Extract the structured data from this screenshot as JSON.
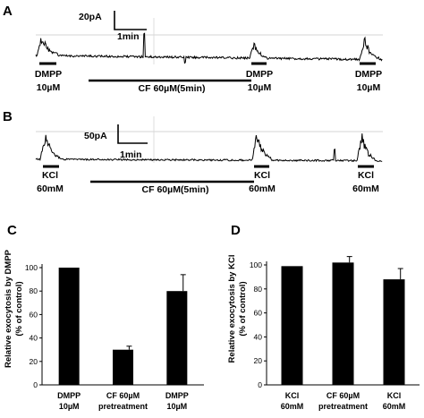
{
  "panels": {
    "a": {
      "letter": "A",
      "scale_current": "20pA",
      "scale_time": "1min",
      "markers": [
        {
          "line1": "DMPP",
          "line2": "10µM"
        },
        {
          "line1": "DMPP",
          "line2": "10µM"
        },
        {
          "line1": "DMPP",
          "line2": "10µM"
        }
      ],
      "treatment": "CF 60µM(5min)"
    },
    "b": {
      "letter": "B",
      "scale_current": "50pA",
      "scale_time": "1min",
      "markers": [
        {
          "line1": "KCl",
          "line2": "60mM"
        },
        {
          "line1": "KCl",
          "line2": "60mM"
        },
        {
          "line1": "KCl",
          "line2": "60mM"
        }
      ],
      "treatment": "CF 60µM(5min)"
    }
  },
  "chart_data": [
    {
      "type": "bar",
      "panel": "C",
      "ylabel_line1": "Relative exocytosis by DMPP",
      "ylabel_line2": "(% of control)",
      "ylim": [
        0,
        100
      ],
      "yticks": [
        0,
        20,
        40,
        60,
        80,
        100
      ],
      "categories": [
        {
          "line1": "DMPP",
          "line2": "10µM"
        },
        {
          "line1": "CF 60µM",
          "line2": "pretreatment"
        },
        {
          "line1": "DMPP",
          "line2": "10µM"
        }
      ],
      "values": [
        100,
        30,
        80
      ],
      "errors": [
        0,
        3,
        14
      ],
      "bar_color": "#000000"
    },
    {
      "type": "bar",
      "panel": "D",
      "ylabel_line1": "Relative exocytosis by KCl",
      "ylabel_line2": "(% of control)",
      "ylim": [
        0,
        100
      ],
      "yticks": [
        0,
        20,
        40,
        60,
        80,
        100
      ],
      "categories": [
        {
          "line1": "KCl",
          "line2": "60mM"
        },
        {
          "line1": "CF 60µM",
          "line2": "pretreatment"
        },
        {
          "line1": "KCl",
          "line2": "60mM"
        }
      ],
      "values": [
        99,
        102,
        88
      ],
      "errors": [
        0,
        5,
        9
      ],
      "bar_color": "#000000"
    }
  ]
}
